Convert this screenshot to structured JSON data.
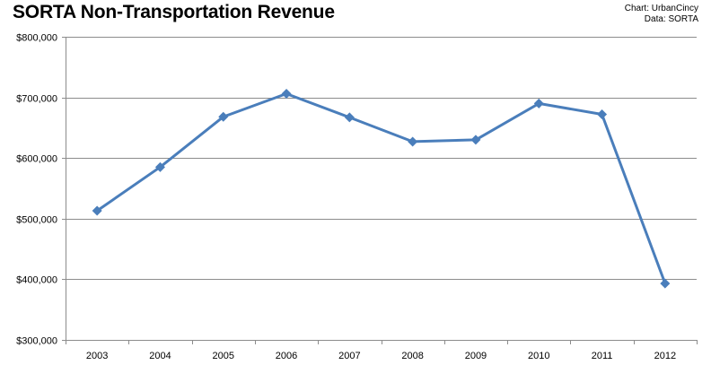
{
  "chart_data": {
    "type": "line",
    "title": "SORTA Non-Transportation Revenue",
    "credits": [
      "Chart: UrbanCincy",
      "Data: SORTA"
    ],
    "categories": [
      "2003",
      "2004",
      "2005",
      "2006",
      "2007",
      "2008",
      "2009",
      "2010",
      "2011",
      "2012"
    ],
    "series": [
      {
        "values": [
          513000,
          585000,
          668000,
          706000,
          667000,
          627000,
          630000,
          690000,
          672000,
          393000
        ]
      }
    ],
    "ylim": [
      300000,
      800000
    ],
    "yticks": [
      "$300,000",
      "$400,000",
      "$500,000",
      "$600,000",
      "$700,000",
      "$800,000"
    ],
    "ytick_values": [
      300000,
      400000,
      500000,
      600000,
      700000,
      800000
    ],
    "grid": true,
    "legend": "none",
    "colors": {
      "line": "#4A7EBB",
      "grid": "#8C8C8C"
    }
  }
}
